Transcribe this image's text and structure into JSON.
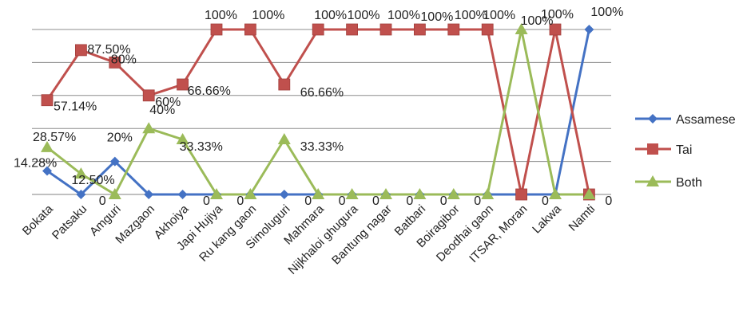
{
  "chart_data": {
    "type": "line",
    "categories": [
      "Bokata",
      "Patsaku",
      "Amguri",
      "Mazgaon",
      "Akhoiya",
      "Japi Hujiya",
      "Ru kang gaon",
      "Simoluguri",
      "Mahmara",
      "Nijkhaloi ghugura",
      "Bantung nagar",
      "Batbari",
      "Boiragibor",
      "Deodhai gaon",
      "ITSAR, Moran",
      "Lakwa",
      "Namti"
    ],
    "ylim": [
      0,
      100
    ],
    "grid": true,
    "legend_position": "right",
    "series": [
      {
        "name": "Assamese",
        "color": "#4472C4",
        "marker": "diamond",
        "values": [
          14.28,
          0,
          20,
          0,
          0,
          0,
          0,
          0,
          0,
          0,
          0,
          0,
          0,
          0,
          0,
          0,
          100
        ],
        "labels": [
          "14.28%",
          "",
          "20%",
          "",
          "",
          "",
          "",
          "",
          "",
          "",
          "",
          "",
          "",
          "",
          "",
          "",
          "100%"
        ]
      },
      {
        "name": "Tai",
        "color": "#C0504D",
        "marker": "square",
        "values": [
          57.14,
          87.5,
          80,
          60,
          66.66,
          100,
          100,
          66.66,
          100,
          100,
          100,
          100,
          100,
          100,
          0,
          100,
          0
        ],
        "labels": [
          "57.14%",
          "87.50%",
          "80%",
          "60%",
          "66.66%",
          "100%",
          "100%",
          "66.66%",
          "100%",
          "100%",
          "100%",
          "100%",
          "100%",
          "100%",
          "",
          "100%",
          ""
        ]
      },
      {
        "name": "Both",
        "color": "#9BBB59",
        "marker": "triangle",
        "values": [
          28.57,
          12.5,
          0,
          40,
          33.33,
          0,
          0,
          33.33,
          0,
          0,
          0,
          0,
          0,
          0,
          100,
          0,
          0
        ],
        "labels": [
          "28.57%",
          "12.50%",
          "0",
          "40%",
          "33.33%",
          "0",
          "0",
          "33.33%",
          "0",
          "0",
          "0",
          "0",
          "0",
          "0",
          "100%",
          "0",
          "0"
        ]
      }
    ]
  }
}
